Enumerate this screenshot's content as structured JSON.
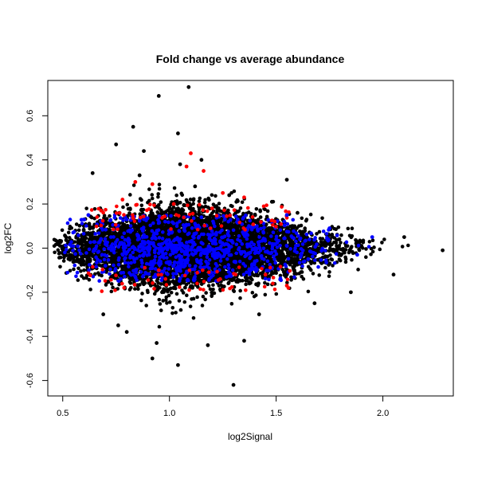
{
  "chart_data": {
    "type": "scatter",
    "title": "Fold change vs average abundance",
    "xlabel": "log2Signal",
    "ylabel": "log2FC",
    "xlim": [
      0.43,
      2.33
    ],
    "ylim": [
      -0.67,
      0.76
    ],
    "xticks": [
      0.5,
      1.0,
      1.5,
      2.0
    ],
    "xtick_labels": [
      "0.5",
      "1.0",
      "1.5",
      "2.0"
    ],
    "yticks": [
      -0.6,
      -0.4,
      -0.2,
      0.0,
      0.2,
      0.4,
      0.6
    ],
    "ytick_labels": [
      "-0.6",
      "-0.4",
      "-0.2",
      "0.0",
      "0.2",
      "0.4",
      "0.6"
    ],
    "grid": false,
    "legend": "none",
    "colors": {
      "black": "#000000",
      "blue": "#0000ff",
      "red": "#ff0000"
    },
    "series": [
      {
        "color": "black",
        "x": [
          0.95,
          1.09,
          0.83,
          1.04,
          0.75,
          0.64,
          1.15,
          0.88,
          1.05,
          1.28,
          1.55,
          0.8,
          0.94,
          1.18,
          1.42,
          1.68,
          1.85,
          2.05,
          2.28,
          1.3,
          0.92,
          1.04,
          1.35,
          0.76,
          0.69,
          1.12,
          0.86,
          1.6,
          1.48,
          2.1
        ],
        "y": [
          0.69,
          0.73,
          0.55,
          0.52,
          0.47,
          0.34,
          0.4,
          0.44,
          0.38,
          0.24,
          0.31,
          -0.38,
          -0.43,
          -0.44,
          -0.3,
          -0.25,
          -0.2,
          -0.12,
          -0.01,
          -0.62,
          -0.5,
          -0.53,
          -0.42,
          -0.35,
          -0.3,
          0.28,
          0.33,
          0.16,
          0.21,
          0.05
        ]
      },
      {
        "color": "blue",
        "x": [
          0.62,
          0.8,
          0.98,
          1.15,
          1.32,
          1.55,
          1.75,
          1.95,
          0.7,
          1.05,
          1.4,
          1.65,
          1.88,
          0.88,
          1.22,
          1.5
        ],
        "y": [
          0.15,
          0.13,
          0.12,
          0.14,
          0.13,
          0.15,
          0.09,
          0.05,
          -0.08,
          -0.09,
          -0.06,
          -0.05,
          -0.03,
          0.06,
          0.07,
          0.04
        ]
      },
      {
        "color": "red",
        "x": [
          1.1,
          1.08,
          1.16,
          0.92,
          0.84,
          1.25,
          1.35,
          0.68,
          0.78,
          1.02,
          1.2,
          1.45,
          1.55,
          0.95
        ],
        "y": [
          0.43,
          0.37,
          0.35,
          0.29,
          0.3,
          0.25,
          0.23,
          0.17,
          0.22,
          0.2,
          0.18,
          -0.12,
          -0.17,
          -0.1
        ]
      }
    ]
  }
}
